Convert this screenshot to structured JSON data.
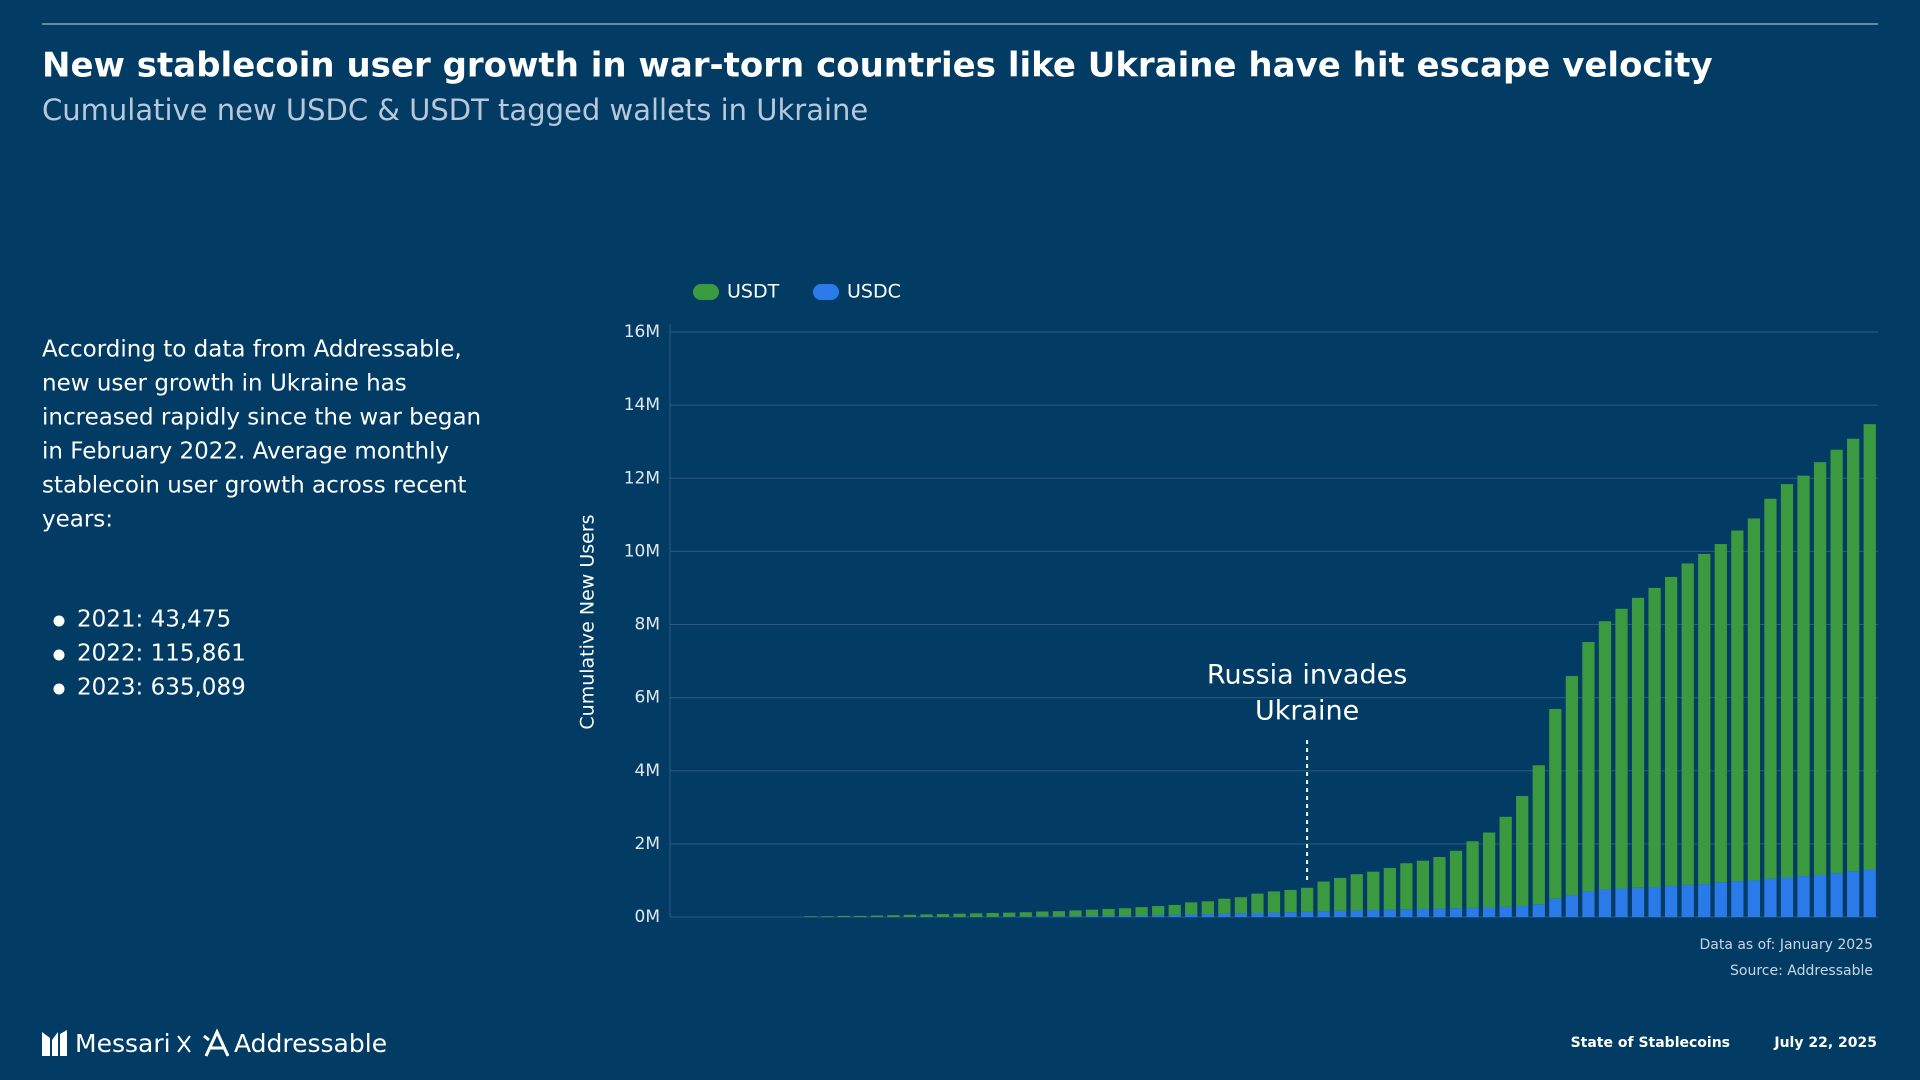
{
  "header": {
    "title": "New stablecoin user growth in war-torn countries like Ukraine have hit escape velocity",
    "subtitle": "Cumulative new USDC & USDT tagged wallets in Ukraine"
  },
  "body": {
    "lines": [
      "According to data from Addressable,",
      "new user growth in Ukraine has",
      "increased rapidly since the war began",
      "in February 2022. Average monthly",
      "stablecoin user growth across recent",
      "years:"
    ],
    "bullets": [
      "2021: 43,475",
      "2022: 115,861",
      "2023: 635,089"
    ]
  },
  "chart_data": {
    "type": "stacked_bar",
    "y_label": "Cumulative New Users",
    "categories": [
      null,
      null,
      null,
      null,
      null,
      null,
      null,
      null,
      null,
      null,
      null,
      null,
      null,
      null,
      null,
      null,
      null,
      null,
      null,
      null,
      null,
      null,
      null,
      null,
      null,
      null,
      null,
      null,
      null,
      null,
      null,
      null,
      null,
      null,
      null,
      null,
      null,
      null,
      null,
      null,
      null,
      null,
      null,
      null,
      null,
      null,
      null,
      null,
      null,
      null,
      null,
      null,
      null,
      null,
      null,
      null,
      null,
      null,
      null,
      null,
      null,
      null,
      null,
      null,
      null,
      null,
      null,
      null,
      null,
      null,
      null,
      null,
      null
    ],
    "series": [
      {
        "name": "USDT",
        "color": "#3b9a3f",
        "values": [
          0,
          0,
          0,
          0,
          0,
          0,
          0,
          0,
          20000,
          20000,
          30000,
          30000,
          40000,
          50000,
          60000,
          70000,
          80000,
          90000,
          100000,
          110000,
          110000,
          120000,
          130000,
          140000,
          160000,
          170000,
          190000,
          210000,
          230000,
          250000,
          270000,
          330000,
          350000,
          410000,
          440000,
          530000,
          580000,
          610000,
          660000,
          810000,
          900000,
          990000,
          1050000,
          1140000,
          1260000,
          1320000,
          1410000,
          1570000,
          1820000,
          2050000,
          2460000,
          3010000,
          3800000,
          5190000,
          5990000,
          6820000,
          7340000,
          7650000,
          7930000,
          8180000,
          8450000,
          8790000,
          9030000,
          9250000,
          9590000,
          9900000,
          10390000,
          10760000,
          10950000,
          11290000,
          11580000,
          11830000,
          12180000
        ]
      },
      {
        "name": "USDC",
        "color": "#2a7be9",
        "values": [
          0,
          0,
          0,
          0,
          0,
          0,
          0,
          0,
          0,
          0,
          0,
          0,
          0,
          0,
          0,
          0,
          0,
          0,
          0,
          0,
          10000,
          10000,
          20000,
          20000,
          20000,
          30000,
          30000,
          30000,
          40000,
          50000,
          60000,
          70000,
          80000,
          90000,
          100000,
          110000,
          120000,
          130000,
          140000,
          160000,
          170000,
          180000,
          190000,
          200000,
          210000,
          220000,
          230000,
          240000,
          250000,
          260000,
          280000,
          300000,
          350000,
          500000,
          600000,
          700000,
          750000,
          780000,
          800000,
          820000,
          850000,
          880000,
          900000,
          950000,
          980000,
          1000000,
          1050000,
          1080000,
          1120000,
          1150000,
          1200000,
          1250000,
          1300000
        ]
      }
    ],
    "ylim": [
      0,
      16000000
    ],
    "yticks": [
      {
        "value": 0,
        "label": "0M"
      },
      {
        "value": 2000000,
        "label": "2M"
      },
      {
        "value": 4000000,
        "label": "4M"
      },
      {
        "value": 6000000,
        "label": "6M"
      },
      {
        "value": 8000000,
        "label": "8M"
      },
      {
        "value": 10000000,
        "label": "10M"
      },
      {
        "value": 12000000,
        "label": "12M"
      },
      {
        "value": 14000000,
        "label": "14M"
      },
      {
        "value": 16000000,
        "label": "16M"
      }
    ],
    "grid": true,
    "legend": "top-left",
    "annotation": [
      "Russia invades",
      "Ukraine"
    ],
    "notes": [
      "Data as of: January 2025",
      "Source: Addressable"
    ]
  },
  "footer": {
    "brand": "Messari",
    "partner": "Addressable",
    "report": "State of Stablecoins",
    "date": "July 22, 2025"
  }
}
